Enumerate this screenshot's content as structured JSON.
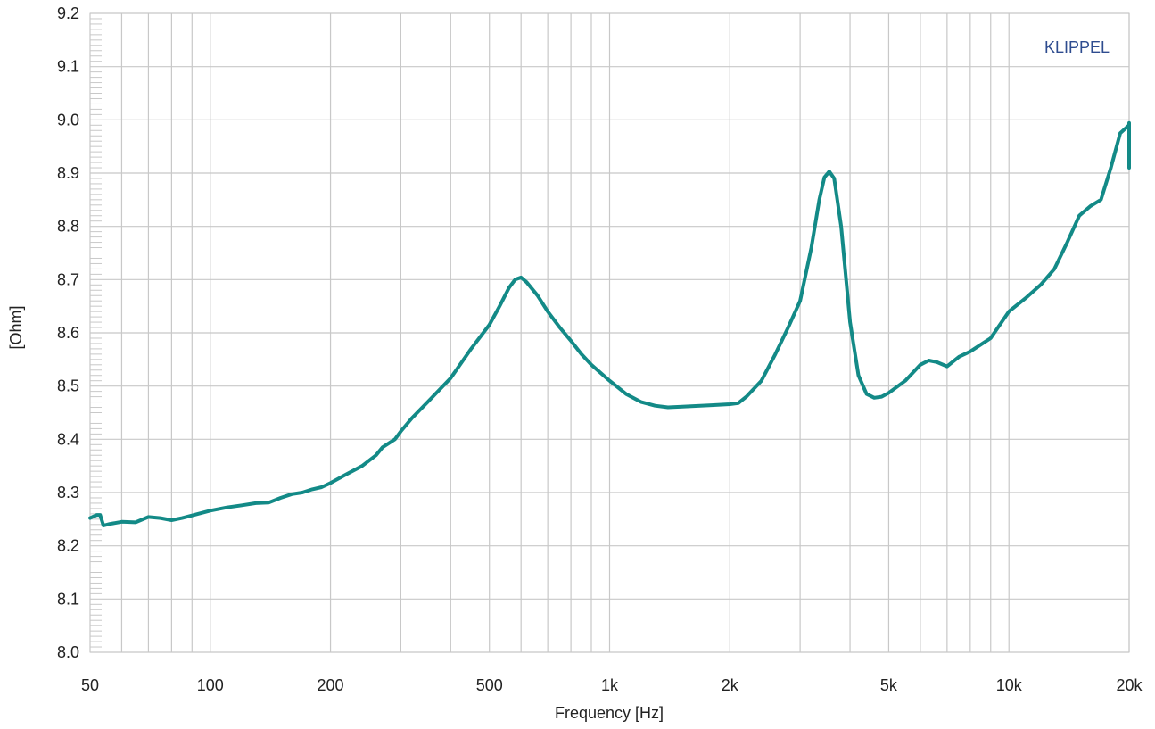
{
  "chart_data": {
    "type": "line",
    "xlabel": "Frequency [Hz]",
    "ylabel": "[Ohm]",
    "xscale": "log",
    "xlim": [
      50,
      20000
    ],
    "ylim": [
      8.0,
      9.2
    ],
    "grid": true,
    "brand": "KLIPPEL",
    "colors": {
      "series": "#138a87",
      "grid": "#c8c8c8",
      "brand": "#2e4c8f"
    },
    "x_ticks": [
      {
        "value": 50,
        "label": "50"
      },
      {
        "value": 100,
        "label": "100"
      },
      {
        "value": 200,
        "label": "200"
      },
      {
        "value": 500,
        "label": "500"
      },
      {
        "value": 1000,
        "label": "1k"
      },
      {
        "value": 2000,
        "label": "2k"
      },
      {
        "value": 5000,
        "label": "5k"
      },
      {
        "value": 10000,
        "label": "10k"
      },
      {
        "value": 20000,
        "label": "20k"
      }
    ],
    "y_ticks": [
      {
        "value": 8.0,
        "label": "8.0"
      },
      {
        "value": 8.1,
        "label": "8.1"
      },
      {
        "value": 8.2,
        "label": "8.2"
      },
      {
        "value": 8.3,
        "label": "8.3"
      },
      {
        "value": 8.4,
        "label": "8.4"
      },
      {
        "value": 8.5,
        "label": "8.5"
      },
      {
        "value": 8.6,
        "label": "8.6"
      },
      {
        "value": 8.7,
        "label": "8.7"
      },
      {
        "value": 8.8,
        "label": "8.8"
      },
      {
        "value": 8.9,
        "label": "8.9"
      },
      {
        "value": 9.0,
        "label": "9.0"
      },
      {
        "value": 9.1,
        "label": "9.1"
      },
      {
        "value": 9.2,
        "label": "9.2"
      }
    ],
    "series": [
      {
        "points": [
          [
            50,
            8.252
          ],
          [
            52,
            8.258
          ],
          [
            53,
            8.258
          ],
          [
            54,
            8.238
          ],
          [
            56,
            8.241
          ],
          [
            60,
            8.245
          ],
          [
            65,
            8.244
          ],
          [
            70,
            8.254
          ],
          [
            75,
            8.252
          ],
          [
            80,
            8.248
          ],
          [
            85,
            8.252
          ],
          [
            90,
            8.257
          ],
          [
            100,
            8.266
          ],
          [
            110,
            8.272
          ],
          [
            120,
            8.276
          ],
          [
            130,
            8.28
          ],
          [
            140,
            8.281
          ],
          [
            150,
            8.29
          ],
          [
            160,
            8.297
          ],
          [
            170,
            8.3
          ],
          [
            180,
            8.306
          ],
          [
            190,
            8.31
          ],
          [
            200,
            8.318
          ],
          [
            220,
            8.335
          ],
          [
            240,
            8.35
          ],
          [
            260,
            8.37
          ],
          [
            270,
            8.385
          ],
          [
            290,
            8.4
          ],
          [
            300,
            8.415
          ],
          [
            320,
            8.44
          ],
          [
            350,
            8.47
          ],
          [
            400,
            8.515
          ],
          [
            450,
            8.57
          ],
          [
            500,
            8.615
          ],
          [
            530,
            8.65
          ],
          [
            560,
            8.685
          ],
          [
            580,
            8.7
          ],
          [
            600,
            8.704
          ],
          [
            620,
            8.695
          ],
          [
            660,
            8.67
          ],
          [
            700,
            8.64
          ],
          [
            750,
            8.61
          ],
          [
            800,
            8.585
          ],
          [
            850,
            8.56
          ],
          [
            900,
            8.54
          ],
          [
            1000,
            8.51
          ],
          [
            1100,
            8.485
          ],
          [
            1200,
            8.47
          ],
          [
            1300,
            8.463
          ],
          [
            1400,
            8.46
          ],
          [
            1500,
            8.461
          ],
          [
            1600,
            8.462
          ],
          [
            1800,
            8.464
          ],
          [
            2000,
            8.466
          ],
          [
            2100,
            8.468
          ],
          [
            2200,
            8.48
          ],
          [
            2400,
            8.51
          ],
          [
            2600,
            8.56
          ],
          [
            2800,
            8.61
          ],
          [
            3000,
            8.66
          ],
          [
            3200,
            8.76
          ],
          [
            3350,
            8.85
          ],
          [
            3450,
            8.892
          ],
          [
            3550,
            8.903
          ],
          [
            3650,
            8.89
          ],
          [
            3800,
            8.8
          ],
          [
            4000,
            8.62
          ],
          [
            4200,
            8.52
          ],
          [
            4400,
            8.485
          ],
          [
            4600,
            8.478
          ],
          [
            4800,
            8.48
          ],
          [
            5000,
            8.487
          ],
          [
            5500,
            8.51
          ],
          [
            6000,
            8.54
          ],
          [
            6300,
            8.548
          ],
          [
            6600,
            8.545
          ],
          [
            7000,
            8.537
          ],
          [
            7500,
            8.555
          ],
          [
            8000,
            8.565
          ],
          [
            9000,
            8.59
          ],
          [
            10000,
            8.64
          ],
          [
            11000,
            8.665
          ],
          [
            12000,
            8.69
          ],
          [
            13000,
            8.72
          ],
          [
            14000,
            8.77
          ],
          [
            15000,
            8.82
          ],
          [
            16000,
            8.838
          ],
          [
            17000,
            8.85
          ],
          [
            18000,
            8.91
          ],
          [
            19000,
            8.975
          ],
          [
            20000,
            8.99
          ],
          [
            20500,
            8.994
          ],
          [
            21000,
            8.96
          ],
          [
            21500,
            8.91
          ]
        ]
      }
    ]
  }
}
